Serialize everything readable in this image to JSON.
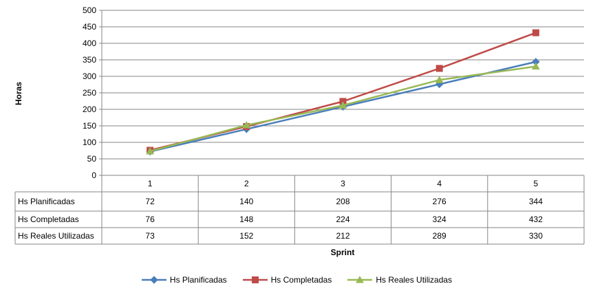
{
  "chart_data": {
    "type": "line",
    "xlabel": "Sprint",
    "ylabel": "Horas",
    "ylim": [
      0,
      500
    ],
    "yticks": [
      0,
      50,
      100,
      150,
      200,
      250,
      300,
      350,
      400,
      450,
      500
    ],
    "grid": true,
    "legend_position": "bottom",
    "data_table": true,
    "categories": [
      "1",
      "2",
      "3",
      "4",
      "5"
    ],
    "series": [
      {
        "name": "Hs Planificadas",
        "values": [
          72,
          140,
          208,
          276,
          344
        ],
        "color": "#4A7EBB",
        "marker": "diamond"
      },
      {
        "name": "Hs Completadas",
        "values": [
          76,
          148,
          224,
          324,
          432
        ],
        "color": "#BE4B48",
        "marker": "square"
      },
      {
        "name": "Hs Reales Utilizadas",
        "values": [
          73,
          152,
          212,
          289,
          330
        ],
        "color": "#98B954",
        "marker": "triangle"
      }
    ]
  }
}
